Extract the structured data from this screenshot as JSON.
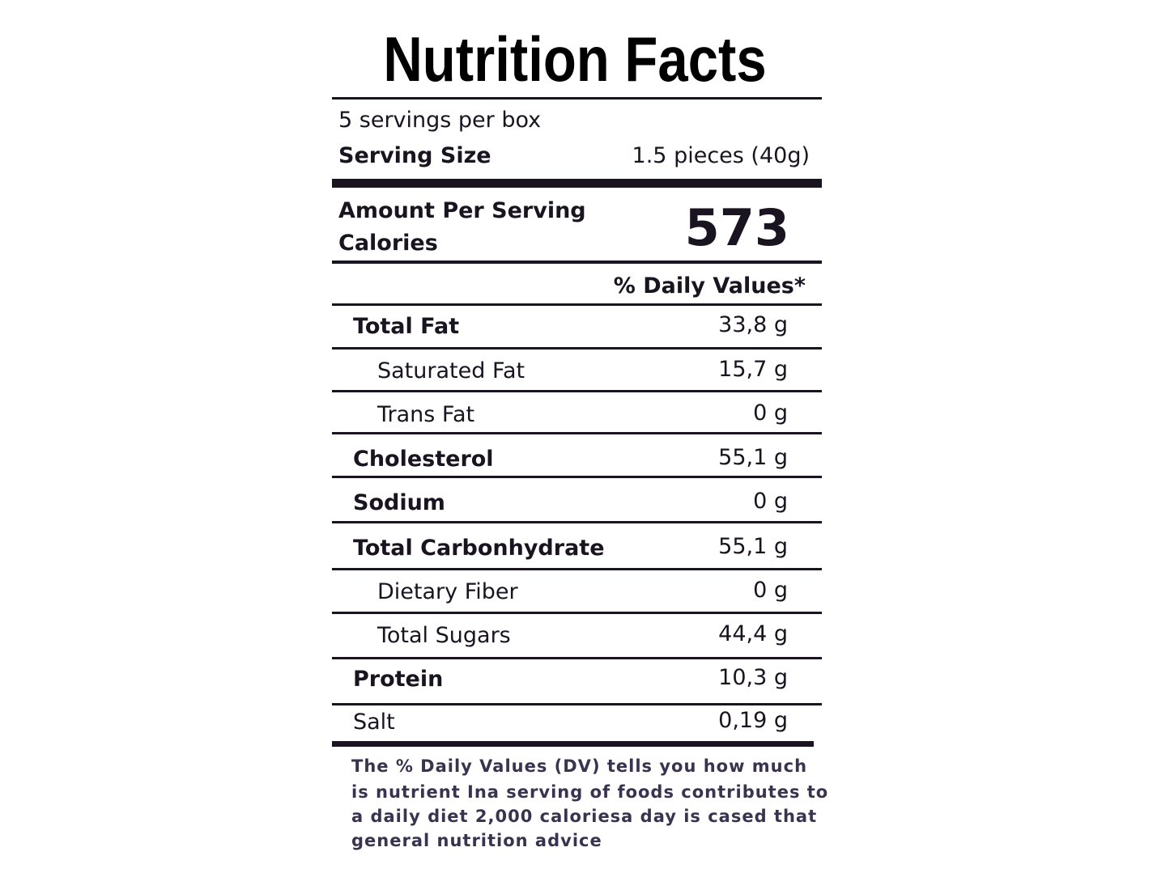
{
  "title": "Nutrition Facts",
  "servings_per_container": "5 servings per box",
  "serving_size": {
    "label": "Serving Size",
    "value": "1.5 pieces (40g)"
  },
  "amount_per_serving": "Amount Per Serving",
  "calories": {
    "label": "Calories",
    "value": "573"
  },
  "daily_values_header": "% Daily Values*",
  "nutrients": [
    {
      "name": "Total Fat",
      "amount": "33,8 g"
    },
    {
      "name": "Saturated Fat",
      "amount": "15,7 g"
    },
    {
      "name": "Trans Fat",
      "amount": "0 g"
    },
    {
      "name": "Cholesterol",
      "amount": "55,1 g"
    },
    {
      "name": "Sodium",
      "amount": "0 g"
    },
    {
      "name": "Total Carbonhydrate",
      "amount": "55,1 g"
    },
    {
      "name": "Dietary Fiber",
      "amount": "0 g"
    },
    {
      "name": "Total Sugars",
      "amount": "44,4 g"
    },
    {
      "name": "Protein",
      "amount": "10,3 g"
    },
    {
      "name": "Salt",
      "amount": "0,19 g"
    }
  ],
  "footnote": [
    "The % Daily Values (DV) tells you how much",
    "is nutrient Ina serving of foods contributes to",
    "a daily diet  2,000 caloriesa day is cased that",
    "general nutrition advice"
  ]
}
